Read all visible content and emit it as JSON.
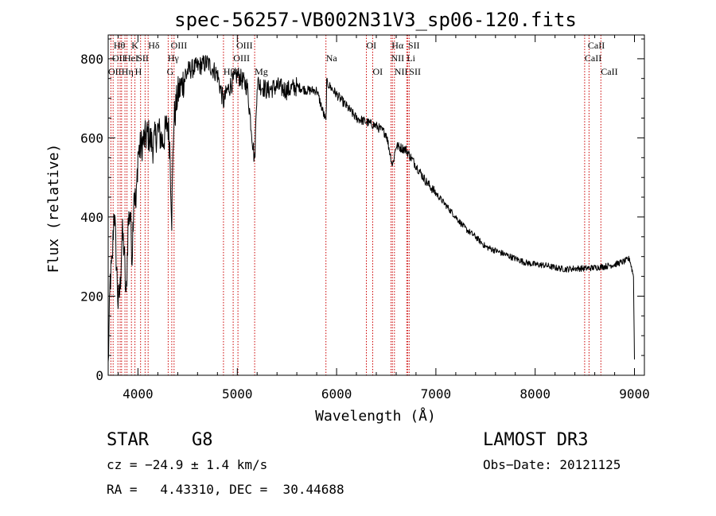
{
  "chart_data": {
    "type": "line",
    "title": "spec-56257-VB002N31V3_sp06-120.fits",
    "xlabel": "Wavelength (Å)",
    "ylabel": "Flux (relative)",
    "xlim": [
      3700,
      9100
    ],
    "ylim": [
      0,
      860
    ],
    "xticks": [
      4000,
      5000,
      6000,
      7000,
      8000,
      9000
    ],
    "xtick_labels": [
      "4000",
      "5000",
      "6000",
      "7000",
      "8000",
      "9000"
    ],
    "yticks": [
      0,
      200,
      400,
      600,
      800
    ],
    "ytick_labels": [
      "0",
      "200",
      "400",
      "600",
      "800"
    ],
    "grid": false,
    "legend": "none",
    "series": [
      {
        "name": "flux",
        "x": [
          3700,
          3720,
          3740,
          3760,
          3780,
          3800,
          3820,
          3840,
          3860,
          3880,
          3900,
          3920,
          3940,
          3960,
          3980,
          4000,
          4050,
          4100,
          4150,
          4200,
          4250,
          4300,
          4320,
          4340,
          4360,
          4400,
          4450,
          4500,
          4600,
          4700,
          4800,
          4861,
          4900,
          5000,
          5100,
          5175,
          5200,
          5300,
          5400,
          5500,
          5600,
          5700,
          5800,
          5893,
          5900,
          6000,
          6100,
          6200,
          6300,
          6400,
          6500,
          6563,
          6600,
          6700,
          6800,
          6900,
          7000,
          7100,
          7200,
          7300,
          7400,
          7500,
          7600,
          7700,
          7800,
          7900,
          8000,
          8100,
          8200,
          8300,
          8400,
          8500,
          8600,
          8700,
          8800,
          8900,
          8950,
          8990,
          9000
        ],
        "y": [
          20,
          240,
          280,
          430,
          300,
          180,
          220,
          360,
          320,
          180,
          380,
          420,
          300,
          480,
          420,
          560,
          590,
          610,
          580,
          620,
          590,
          640,
          580,
          400,
          640,
          710,
          740,
          770,
          780,
          790,
          760,
          690,
          720,
          760,
          730,
          540,
          740,
          720,
          730,
          720,
          730,
          720,
          720,
          640,
          740,
          710,
          680,
          650,
          640,
          630,
          610,
          530,
          580,
          570,
          530,
          490,
          460,
          430,
          400,
          370,
          350,
          325,
          315,
          305,
          295,
          285,
          280,
          278,
          272,
          268,
          270,
          270,
          272,
          275,
          280,
          288,
          295,
          250,
          40
        ]
      }
    ],
    "lines": [
      {
        "x": 3727,
        "top": [
          "OII"
        ]
      },
      {
        "x": 3750,
        "top": [
          "Hθ"
        ]
      },
      {
        "x": 3798,
        "top": [],
        "mid": []
      },
      {
        "x": 3820,
        "top": [
          "HeI"
        ]
      },
      {
        "x": 3835,
        "top": [
          "Hη"
        ]
      },
      {
        "x": 3869,
        "top": []
      },
      {
        "x": 3889,
        "top": [
          "Hζ"
        ]
      },
      {
        "x": 3934,
        "top": [
          "K"
        ]
      },
      {
        "x": 3969,
        "top": [
          "H"
        ]
      },
      {
        "x": 4026,
        "top": [
          "HeI"
        ]
      },
      {
        "x": 4072,
        "top": [
          "SII"
        ]
      },
      {
        "x": 4102,
        "top": [
          "Hδ"
        ]
      },
      {
        "x": 4304,
        "top": [
          "G"
        ]
      },
      {
        "x": 4340,
        "top": [
          "Hγ"
        ]
      },
      {
        "x": 4363,
        "top": [
          "OIII"
        ]
      },
      {
        "x": 4861,
        "top": [
          "Hβ"
        ]
      },
      {
        "x": 4959,
        "top": [
          "OIII"
        ]
      },
      {
        "x": 5007,
        "top": [
          "OIII"
        ]
      },
      {
        "x": 5175,
        "top": [
          "Mg"
        ]
      },
      {
        "x": 5893,
        "top": [
          "Na"
        ]
      },
      {
        "x": 6300,
        "top": [
          "OI"
        ]
      },
      {
        "x": 6364,
        "top": [
          "OI"
        ]
      },
      {
        "x": 6548,
        "top": [
          "NII"
        ]
      },
      {
        "x": 6563,
        "top": [
          "Hα"
        ]
      },
      {
        "x": 6583,
        "top": [
          "NII"
        ]
      },
      {
        "x": 6707,
        "top": [
          "Li"
        ]
      },
      {
        "x": 6716,
        "top": [
          "SII"
        ]
      },
      {
        "x": 6731,
        "top": [
          "SII"
        ]
      },
      {
        "x": 8498,
        "top": [
          "CaII"
        ]
      },
      {
        "x": 8542,
        "top": [
          "CaII"
        ]
      },
      {
        "x": 8662,
        "top": [
          "CaII"
        ]
      }
    ],
    "line_labels": [
      {
        "text": "Hθ",
        "x": 3755,
        "row": 0
      },
      {
        "text": "K",
        "x": 3934,
        "row": 0
      },
      {
        "text": "Hδ",
        "x": 4102,
        "row": 0
      },
      {
        "text": "OIII",
        "x": 4330,
        "row": 0
      },
      {
        "text": "OIII",
        "x": 4990,
        "row": 0
      },
      {
        "text": "OI",
        "x": 6300,
        "row": 0
      },
      {
        "text": "Hα",
        "x": 6555,
        "row": 0
      },
      {
        "text": "SII",
        "x": 6720,
        "row": 0
      },
      {
        "text": "CaII",
        "x": 8530,
        "row": 0
      },
      {
        "text": "OII",
        "x": 3740,
        "row": 1
      },
      {
        "text": "HeI",
        "x": 3860,
        "row": 1
      },
      {
        "text": "SII",
        "x": 3990,
        "row": 1
      },
      {
        "text": "Hγ",
        "x": 4300,
        "row": 1
      },
      {
        "text": "OIII",
        "x": 4960,
        "row": 1
      },
      {
        "text": "Na",
        "x": 5893,
        "row": 1
      },
      {
        "text": "NII",
        "x": 6548,
        "row": 1
      },
      {
        "text": "Li",
        "x": 6707,
        "row": 1
      },
      {
        "text": "CaII",
        "x": 8498,
        "row": 1
      },
      {
        "text": "OII",
        "x": 3700,
        "row": 2
      },
      {
        "text": "Hη",
        "x": 3835,
        "row": 2
      },
      {
        "text": "H",
        "x": 3969,
        "row": 2
      },
      {
        "text": "G",
        "x": 4290,
        "row": 2
      },
      {
        "text": "Hβ",
        "x": 4861,
        "row": 2
      },
      {
        "text": "Mg",
        "x": 5175,
        "row": 2
      },
      {
        "text": "OI",
        "x": 6364,
        "row": 2
      },
      {
        "text": "NII",
        "x": 6583,
        "row": 2
      },
      {
        "text": "SII",
        "x": 6731,
        "row": 2
      },
      {
        "text": "CaII",
        "x": 8662,
        "row": 2
      }
    ],
    "line_color": "#cc0000",
    "trace_color": "#000000"
  },
  "info": {
    "object_class": "STAR",
    "subclass": "G8",
    "survey": "LAMOST DR3",
    "cz": "cz = −24.9 ± 1.4 km/s",
    "obs_date": "Obs−Date: 20121125",
    "coords": "RA =   4.43310, DEC =  30.44688"
  }
}
